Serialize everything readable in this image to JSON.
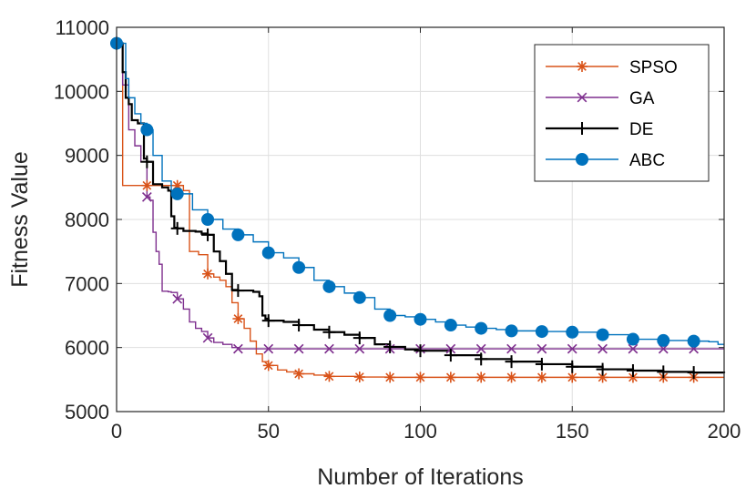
{
  "chart_data": {
    "type": "line",
    "title": "",
    "xlabel": "Number of Iterations",
    "ylabel": "Fitness Value",
    "xlim": [
      0,
      200
    ],
    "ylim": [
      5000,
      11000
    ],
    "xticks": [
      0,
      50,
      100,
      150,
      200
    ],
    "yticks": [
      5000,
      6000,
      7000,
      8000,
      9000,
      10000,
      11000
    ],
    "grid": true,
    "legend_position": "top-right",
    "series": [
      {
        "name": "SPSO",
        "color": "#D95319",
        "marker": "asterisk",
        "step": true,
        "x": [
          0,
          1,
          2,
          20,
          22,
          24,
          27,
          30,
          32,
          34,
          36,
          38,
          40,
          42,
          44,
          46,
          48,
          50,
          53,
          56,
          60,
          65,
          70,
          80,
          90,
          100,
          200
        ],
        "y": [
          10750,
          10750,
          8530,
          8530,
          8450,
          7500,
          7450,
          7150,
          7100,
          7050,
          6950,
          6700,
          6450,
          6300,
          6100,
          5900,
          5780,
          5720,
          5650,
          5620,
          5590,
          5570,
          5550,
          5540,
          5535,
          5535,
          5535
        ]
      },
      {
        "name": "GA",
        "color": "#7E2F8E",
        "marker": "x",
        "step": true,
        "x": [
          0,
          2,
          4,
          6,
          8,
          10,
          11,
          12,
          13,
          14,
          15,
          16,
          17,
          18,
          20,
          22,
          24,
          26,
          28,
          30,
          32,
          35,
          38,
          40,
          200
        ],
        "y": [
          10750,
          10100,
          9400,
          9150,
          8900,
          8350,
          8300,
          7800,
          7500,
          7300,
          6880,
          6880,
          6870,
          6860,
          6760,
          6600,
          6400,
          6300,
          6250,
          6150,
          6080,
          6050,
          6000,
          5980,
          5980
        ]
      },
      {
        "name": "DE",
        "color": "#000000",
        "marker": "plus",
        "step": true,
        "x": [
          0,
          2,
          3,
          4,
          5,
          7,
          9,
          10,
          12,
          15,
          17,
          18,
          19,
          20,
          22,
          26,
          28,
          30,
          32,
          34,
          36,
          38,
          40,
          45,
          47,
          48,
          49,
          50,
          55,
          60,
          65,
          70,
          75,
          80,
          85,
          90,
          95,
          100,
          110,
          120,
          130,
          140,
          150,
          160,
          170,
          180,
          190,
          200
        ],
        "y": [
          10750,
          10300,
          9900,
          9800,
          9550,
          9500,
          8950,
          8900,
          8550,
          8500,
          8450,
          8050,
          7870,
          7860,
          7820,
          7810,
          7780,
          7760,
          7500,
          7350,
          7150,
          6900,
          6890,
          6870,
          6800,
          6500,
          6450,
          6420,
          6400,
          6350,
          6280,
          6240,
          6200,
          6150,
          6050,
          6010,
          5970,
          5950,
          5880,
          5820,
          5780,
          5740,
          5700,
          5660,
          5640,
          5620,
          5610,
          5600
        ]
      },
      {
        "name": "ABC",
        "color": "#0072BD",
        "marker": "circle",
        "step": true,
        "x": [
          0,
          3,
          4,
          6,
          8,
          10,
          12,
          15,
          18,
          20,
          25,
          30,
          35,
          40,
          45,
          50,
          55,
          60,
          65,
          70,
          75,
          80,
          85,
          90,
          95,
          100,
          105,
          110,
          115,
          120,
          125,
          130,
          140,
          150,
          160,
          170,
          180,
          190,
          195,
          198,
          200
        ],
        "y": [
          10750,
          10200,
          9900,
          9650,
          9500,
          9400,
          9000,
          8600,
          8450,
          8400,
          8150,
          8000,
          7850,
          7760,
          7650,
          7480,
          7400,
          7250,
          7050,
          6950,
          6850,
          6780,
          6600,
          6500,
          6480,
          6440,
          6400,
          6350,
          6320,
          6300,
          6280,
          6260,
          6250,
          6240,
          6200,
          6130,
          6110,
          6100,
          6090,
          6050,
          6050
        ]
      }
    ]
  }
}
